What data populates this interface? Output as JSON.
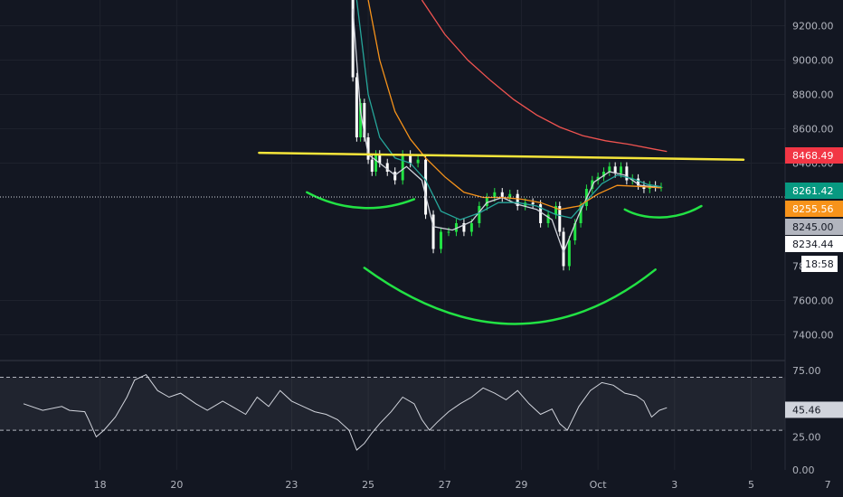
{
  "chart_data": {
    "type": "candlestick",
    "symbol": "",
    "x_ticks": [
      "18",
      "20",
      "23",
      "25",
      "27",
      "29",
      "Oct",
      "3",
      "5",
      "7"
    ],
    "price_ticks": [
      9200,
      9000,
      8800,
      8600,
      8400,
      7600,
      7400
    ],
    "price_range": [
      7250,
      9350
    ],
    "price_labels": [
      {
        "text": "8468.49",
        "value": 8468.49,
        "color": "#f23645",
        "text_color": "#ffffff"
      },
      {
        "text": "8261.42",
        "value": 8261.42,
        "color": "#089981",
        "text_color": "#ffffff"
      },
      {
        "text": "8255.56",
        "value": 8255.56,
        "color": "#f7931a",
        "text_color": "#ffffff"
      },
      {
        "text": "8245.00",
        "value": 8245.0,
        "color": "#b2b5be",
        "text_color": "#131722"
      },
      {
        "text": "8234.44",
        "value": 8234.44,
        "color": "#ffffff",
        "text_color": "#131722"
      }
    ],
    "countdown": "18:58",
    "partial_tick": "7800.00",
    "series": [
      {
        "kind": "price_candles",
        "color_up": "#26a69a",
        "color_down": "#ffffff",
        "points": [
          [
            24.5,
            9350
          ],
          [
            24.6,
            8900
          ],
          [
            24.7,
            8550
          ],
          [
            24.8,
            8750
          ],
          [
            24.9,
            8550
          ],
          [
            25.0,
            8420
          ],
          [
            25.1,
            8350
          ],
          [
            25.2,
            8450
          ],
          [
            25.3,
            8400
          ],
          [
            25.5,
            8350
          ],
          [
            25.7,
            8300
          ],
          [
            25.9,
            8450
          ],
          [
            26.1,
            8400
          ],
          [
            26.3,
            8420
          ],
          [
            26.5,
            8100
          ],
          [
            26.7,
            7900
          ],
          [
            26.9,
            8000
          ],
          [
            27.1,
            8000
          ],
          [
            27.3,
            8050
          ],
          [
            27.5,
            8000
          ],
          [
            27.7,
            8050
          ],
          [
            27.9,
            8150
          ],
          [
            28.1,
            8200
          ],
          [
            28.3,
            8230
          ],
          [
            28.5,
            8200
          ],
          [
            28.7,
            8220
          ],
          [
            28.9,
            8150
          ],
          [
            29.1,
            8170
          ],
          [
            29.3,
            8160
          ],
          [
            29.5,
            8050
          ],
          [
            29.7,
            8100
          ],
          [
            29.9,
            8150
          ],
          [
            30.0,
            8000
          ],
          [
            30.1,
            7800
          ],
          [
            30.25,
            7950
          ],
          [
            30.4,
            8050
          ],
          [
            30.55,
            8150
          ],
          [
            30.7,
            8250
          ],
          [
            30.85,
            8300
          ],
          [
            31.0,
            8320
          ],
          [
            31.15,
            8350
          ],
          [
            31.3,
            8380
          ],
          [
            31.45,
            8340
          ],
          [
            31.6,
            8380
          ],
          [
            31.75,
            8300
          ],
          [
            31.9,
            8310
          ],
          [
            32.05,
            8270
          ],
          [
            32.2,
            8250
          ],
          [
            32.35,
            8270
          ],
          [
            32.5,
            8260
          ],
          [
            32.65,
            8261
          ]
        ]
      },
      {
        "kind": "ma_fast",
        "color": "#d1d4dc",
        "points": [
          [
            24.6,
            9300
          ],
          [
            24.8,
            8700
          ],
          [
            25.0,
            8450
          ],
          [
            25.3,
            8400
          ],
          [
            25.7,
            8330
          ],
          [
            26.0,
            8380
          ],
          [
            26.4,
            8300
          ],
          [
            26.7,
            8030
          ],
          [
            27.2,
            8010
          ],
          [
            27.7,
            8060
          ],
          [
            28.1,
            8170
          ],
          [
            28.5,
            8200
          ],
          [
            28.9,
            8160
          ],
          [
            29.4,
            8130
          ],
          [
            29.8,
            8070
          ],
          [
            30.1,
            7880
          ],
          [
            30.5,
            8100
          ],
          [
            30.9,
            8290
          ],
          [
            31.3,
            8350
          ],
          [
            31.7,
            8330
          ],
          [
            32.1,
            8270
          ],
          [
            32.6,
            8258
          ]
        ]
      },
      {
        "kind": "ma_20",
        "color": "#26a69a",
        "points": [
          [
            24.7,
            9350
          ],
          [
            25.0,
            8800
          ],
          [
            25.3,
            8550
          ],
          [
            25.7,
            8430
          ],
          [
            26.1,
            8400
          ],
          [
            26.5,
            8300
          ],
          [
            26.9,
            8120
          ],
          [
            27.4,
            8070
          ],
          [
            27.9,
            8110
          ],
          [
            28.4,
            8170
          ],
          [
            28.9,
            8170
          ],
          [
            29.4,
            8150
          ],
          [
            29.9,
            8100
          ],
          [
            30.3,
            8080
          ],
          [
            30.7,
            8180
          ],
          [
            31.1,
            8280
          ],
          [
            31.5,
            8330
          ],
          [
            31.9,
            8310
          ],
          [
            32.3,
            8275
          ],
          [
            32.65,
            8262
          ]
        ]
      },
      {
        "kind": "ma_50",
        "color": "#f7931a",
        "points": [
          [
            25.0,
            9350
          ],
          [
            25.3,
            9000
          ],
          [
            25.7,
            8700
          ],
          [
            26.1,
            8540
          ],
          [
            26.5,
            8430
          ],
          [
            27.0,
            8320
          ],
          [
            27.5,
            8230
          ],
          [
            28.0,
            8200
          ],
          [
            28.5,
            8200
          ],
          [
            29.0,
            8190
          ],
          [
            29.5,
            8170
          ],
          [
            30.0,
            8130
          ],
          [
            30.5,
            8150
          ],
          [
            31.0,
            8220
          ],
          [
            31.5,
            8270
          ],
          [
            32.0,
            8265
          ],
          [
            32.65,
            8256
          ]
        ]
      },
      {
        "kind": "ma_200",
        "color": "#ef5350",
        "points": [
          [
            26.4,
            9350
          ],
          [
            27.0,
            9150
          ],
          [
            27.6,
            9000
          ],
          [
            28.2,
            8880
          ],
          [
            28.8,
            8770
          ],
          [
            29.4,
            8680
          ],
          [
            30.0,
            8610
          ],
          [
            30.6,
            8560
          ],
          [
            31.2,
            8530
          ],
          [
            31.8,
            8510
          ],
          [
            32.5,
            8480
          ],
          [
            32.8,
            8468
          ]
        ]
      }
    ],
    "drawings": [
      {
        "kind": "neckline",
        "color": "#f5e53a",
        "points": [
          [
            22.15,
            8460
          ],
          [
            34.8,
            8420
          ]
        ]
      },
      {
        "kind": "left_shoulder",
        "color": "#22e244",
        "points": [
          [
            23.4,
            8230
          ],
          [
            24.4,
            8110
          ],
          [
            25.4,
            8120
          ],
          [
            26.2,
            8190
          ]
        ]
      },
      {
        "kind": "head",
        "color": "#22e244",
        "points": [
          [
            24.9,
            7790
          ],
          [
            26.9,
            7560
          ],
          [
            28.9,
            7510
          ],
          [
            30.9,
            7630
          ],
          [
            32.5,
            7780
          ]
        ]
      },
      {
        "kind": "right_shoulder",
        "color": "#22e244",
        "points": [
          [
            31.7,
            8130
          ],
          [
            32.2,
            8070
          ],
          [
            33.0,
            8060
          ],
          [
            33.7,
            8150
          ]
        ]
      }
    ],
    "rsi": {
      "ticks": [
        75.0,
        25.0,
        0.0
      ],
      "range": [
        0,
        82
      ],
      "upper": 70,
      "lower": 30,
      "value_label": "45.46",
      "color": "#d1d4dc",
      "points": [
        [
          16.0,
          50
        ],
        [
          16.5,
          45
        ],
        [
          17.0,
          48
        ],
        [
          17.2,
          45
        ],
        [
          17.6,
          44
        ],
        [
          17.7,
          38
        ],
        [
          17.9,
          25
        ],
        [
          18.1,
          30
        ],
        [
          18.4,
          40
        ],
        [
          18.7,
          55
        ],
        [
          18.9,
          68
        ],
        [
          19.2,
          72
        ],
        [
          19.5,
          60
        ],
        [
          19.8,
          55
        ],
        [
          20.1,
          58
        ],
        [
          20.5,
          50
        ],
        [
          20.8,
          45
        ],
        [
          21.2,
          52
        ],
        [
          21.5,
          47
        ],
        [
          21.8,
          42
        ],
        [
          22.1,
          55
        ],
        [
          22.4,
          48
        ],
        [
          22.7,
          60
        ],
        [
          23.0,
          52
        ],
        [
          23.3,
          48
        ],
        [
          23.6,
          44
        ],
        [
          23.9,
          42
        ],
        [
          24.2,
          38
        ],
        [
          24.5,
          30
        ],
        [
          24.7,
          15
        ],
        [
          24.9,
          20
        ],
        [
          25.1,
          28
        ],
        [
          25.3,
          35
        ],
        [
          25.6,
          44
        ],
        [
          25.9,
          55
        ],
        [
          26.2,
          50
        ],
        [
          26.4,
          38
        ],
        [
          26.6,
          30
        ],
        [
          26.8,
          36
        ],
        [
          27.1,
          44
        ],
        [
          27.4,
          50
        ],
        [
          27.7,
          55
        ],
        [
          28.0,
          62
        ],
        [
          28.3,
          58
        ],
        [
          28.6,
          53
        ],
        [
          28.9,
          60
        ],
        [
          29.2,
          50
        ],
        [
          29.5,
          42
        ],
        [
          29.8,
          46
        ],
        [
          30.0,
          35
        ],
        [
          30.2,
          30
        ],
        [
          30.5,
          48
        ],
        [
          30.8,
          60
        ],
        [
          31.1,
          66
        ],
        [
          31.4,
          64
        ],
        [
          31.7,
          58
        ],
        [
          32.0,
          56
        ],
        [
          32.2,
          52
        ],
        [
          32.4,
          40
        ],
        [
          32.6,
          45
        ],
        [
          32.8,
          47
        ]
      ]
    }
  }
}
